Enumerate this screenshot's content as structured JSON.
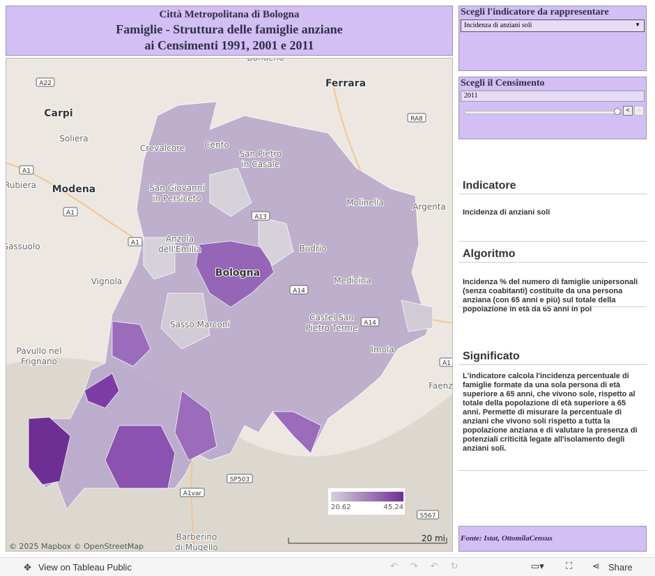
{
  "header": {
    "line1": "Città Metropolitana di Bologna",
    "line2": "Famiglie - Struttura delle famiglie anziane",
    "line3": "ai Censimenti 1991, 2001 e  2011"
  },
  "map": {
    "places": [
      [
        "Bondeno"
      ],
      [
        "Ferrara"
      ],
      [
        "Carpi"
      ],
      [
        "Soliera"
      ],
      [
        "Crevalcore"
      ],
      [
        "Cento"
      ],
      [
        "San Pietro",
        "in Casale"
      ],
      [
        "Rubiera"
      ],
      [
        "Modena"
      ],
      [
        "San Giovanni",
        "in Persiceto"
      ],
      [
        "Molinella"
      ],
      [
        "Argenta"
      ],
      [
        "Sassuolo"
      ],
      [
        "Anzola",
        "dell'Emilia"
      ],
      [
        "Budrio"
      ],
      [
        "Bologna"
      ],
      [
        "Vignola"
      ],
      [
        "Medicina"
      ],
      [
        "Castel San",
        "Pietro Terme"
      ],
      [
        "Sasso Marconi"
      ],
      [
        "Imola"
      ],
      [
        "Pavullo nel",
        "Frignano"
      ],
      [
        "Faenza"
      ],
      [
        "Barberino",
        "di Mugello"
      ]
    ],
    "roads": [
      "A22",
      "RA8",
      "A1",
      "A1",
      "A13",
      "A1",
      "A14",
      "A14",
      "A1",
      "SP503",
      "A1var",
      "S567"
    ],
    "legend": {
      "min": 20.62,
      "max": 45.24
    },
    "attribution": "© 2025 Mapbox  © OpenStreetMap",
    "scale": "20 mi"
  },
  "indicator_selector": {
    "title": "Scegli l'indicatore da rappresentare",
    "value": "Incidenza di anziani soli"
  },
  "census_selector": {
    "title": "Scegli il Censimento",
    "value": "2011"
  },
  "sections": [
    {
      "heading": "Indicatore",
      "body": "Incidenza di anziani soli"
    },
    {
      "heading": "Algoritmo",
      "body": "Incidenza % del numero di famiglie unipersonali (senza coabitanti) costituite da una persona anziana (con 65 anni e più) sul totale della popolazione in età da 65 anni in poi"
    },
    {
      "heading": "Significato",
      "body": "L'indicatore calcola l'incidenza percentuale di famiglie formate da una sola persona di età superiore a 65 anni, che vivono sole, rispetto al totale della popolazione di età superiore a 65 anni. Permette di misurare la percentuale di anziani che vivono soli rispetto a tutta la popolazione anziana e di valutare la presenza di potenziali criticità legate all'isolamento degli anziani soli."
    }
  ],
  "source": "Fonte: Istat, OttomilaCensus",
  "toolbar": {
    "view": "View on Tableau Public",
    "share": "Share"
  }
}
